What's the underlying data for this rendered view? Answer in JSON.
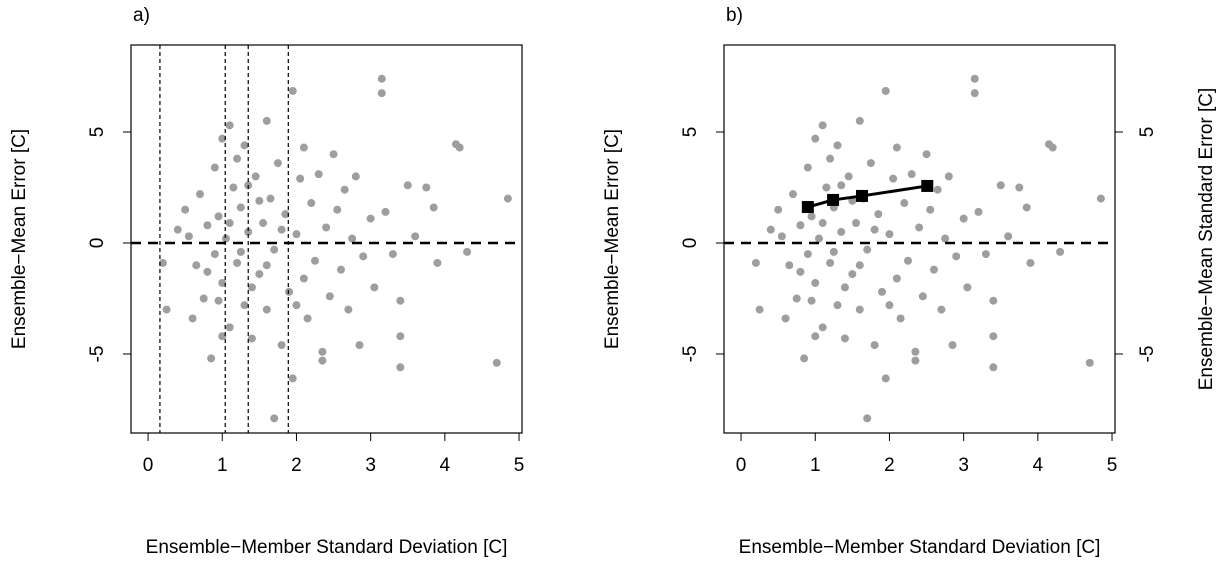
{
  "chart_data": [
    {
      "type": "scatter",
      "title": "a)",
      "x_label": "Ensemble−Member Standard Deviation [C]",
      "y_label": "Ensemble−Mean Error [C]",
      "xlim": [
        -0.23,
        5.04
      ],
      "ylim": [
        -8.56,
        8.92
      ],
      "xticks": [
        0,
        1,
        2,
        3,
        4,
        5
      ],
      "yticks": [
        -5,
        0,
        5
      ],
      "color": "#9e9e9e",
      "x": [
        0.5,
        0.6,
        0.55,
        0.65,
        0.7,
        0.75,
        0.8,
        0.85,
        0.9,
        0.9,
        0.95,
        1.0,
        1.0,
        1.05,
        1.1,
        1.1,
        1.15,
        1.2,
        1.25,
        1.3,
        1.3,
        1.35,
        1.4,
        1.45,
        1.5,
        1.55,
        1.6,
        1.6,
        1.65,
        1.7,
        1.7,
        1.75,
        1.8,
        1.85,
        1.9,
        1.95,
        1.95,
        2.0,
        2.05,
        2.1,
        2.1,
        2.15,
        2.2,
        2.25,
        2.3,
        2.35,
        2.35,
        2.4,
        2.45,
        2.5,
        2.55,
        2.6,
        2.65,
        2.7,
        2.75,
        2.8,
        2.85,
        2.9,
        3.0,
        3.05,
        3.15,
        3.15,
        3.2,
        3.3,
        3.4,
        3.4,
        3.4,
        3.5,
        3.6,
        3.75,
        3.85,
        3.9,
        4.15,
        4.2,
        4.3,
        4.7,
        4.85,
        0.2,
        0.25,
        0.4,
        1.0,
        1.2,
        1.4,
        1.5,
        0.8,
        1.1,
        1.25,
        1.6,
        1.8,
        2.0,
        1.35,
        0.95
      ],
      "values": [
        1.5,
        -3.4,
        0.3,
        -1.0,
        2.2,
        -2.5,
        0.8,
        -5.2,
        3.4,
        -0.5,
        1.2,
        4.7,
        -1.8,
        0.2,
        5.3,
        -3.8,
        2.5,
        -0.9,
        1.6,
        4.4,
        -2.8,
        0.5,
        -4.3,
        3.0,
        -1.4,
        0.9,
        5.5,
        -3.0,
        2.0,
        -7.9,
        -0.3,
        3.6,
        -4.6,
        1.3,
        -2.2,
        6.85,
        -6.1,
        0.4,
        2.9,
        4.3,
        -1.6,
        -3.4,
        1.8,
        -0.8,
        3.1,
        -5.3,
        -4.9,
        0.7,
        -2.4,
        4.0,
        1.5,
        -1.2,
        2.4,
        -3.0,
        0.2,
        3.0,
        -4.6,
        -0.6,
        1.1,
        -2.0,
        7.4,
        6.75,
        1.4,
        -0.5,
        -2.6,
        -4.2,
        -5.6,
        2.6,
        0.3,
        2.5,
        1.6,
        -0.9,
        4.45,
        4.3,
        -0.4,
        -5.4,
        2.0,
        -0.9,
        -3.0,
        0.6,
        -4.2,
        3.8,
        -2.0,
        1.9,
        -1.3,
        0.9,
        -0.4,
        -1.0,
        0.6,
        -2.8,
        2.6,
        -2.6
      ],
      "hline": 0,
      "vlines": [
        0.16,
        1.04,
        1.35,
        1.89
      ]
    },
    {
      "type": "scatter",
      "title": "b)",
      "x_label": "Ensemble−Member Standard Deviation [C]",
      "y_label": "Ensemble−Mean Error [C]",
      "y2_label": "Ensemble−Mean Standard Error [C]",
      "xlim": [
        -0.23,
        5.04
      ],
      "ylim": [
        -8.56,
        8.92
      ],
      "y2lim": [
        -8.56,
        8.92
      ],
      "xticks": [
        0,
        1,
        2,
        3,
        4,
        5
      ],
      "yticks": [
        -5,
        0,
        5
      ],
      "y2ticks": [
        -5,
        5
      ],
      "color": "#9e9e9e",
      "x": [
        0.5,
        0.6,
        0.55,
        0.65,
        0.7,
        0.75,
        0.8,
        0.85,
        0.9,
        0.9,
        0.95,
        1.0,
        1.0,
        1.05,
        1.1,
        1.1,
        1.15,
        1.2,
        1.25,
        1.3,
        1.3,
        1.35,
        1.4,
        1.45,
        1.5,
        1.55,
        1.6,
        1.6,
        1.65,
        1.7,
        1.7,
        1.75,
        1.8,
        1.85,
        1.9,
        1.95,
        1.95,
        2.0,
        2.05,
        2.1,
        2.1,
        2.15,
        2.2,
        2.25,
        2.3,
        2.35,
        2.35,
        2.4,
        2.45,
        2.5,
        2.55,
        2.6,
        2.65,
        2.7,
        2.75,
        2.8,
        2.85,
        2.9,
        3.0,
        3.05,
        3.15,
        3.15,
        3.2,
        3.3,
        3.4,
        3.4,
        3.4,
        3.5,
        3.6,
        3.75,
        3.85,
        3.9,
        4.15,
        4.2,
        4.3,
        4.7,
        4.85,
        0.2,
        0.25,
        0.4,
        1.0,
        1.2,
        1.4,
        1.5,
        0.8,
        1.1,
        1.25,
        1.6,
        1.8,
        2.0,
        1.35,
        0.95
      ],
      "values": [
        1.5,
        -3.4,
        0.3,
        -1.0,
        2.2,
        -2.5,
        0.8,
        -5.2,
        3.4,
        -0.5,
        1.2,
        4.7,
        -1.8,
        0.2,
        5.3,
        -3.8,
        2.5,
        -0.9,
        1.6,
        4.4,
        -2.8,
        0.5,
        -4.3,
        3.0,
        -1.4,
        0.9,
        5.5,
        -3.0,
        2.0,
        -7.9,
        -0.3,
        3.6,
        -4.6,
        1.3,
        -2.2,
        6.85,
        -6.1,
        0.4,
        2.9,
        4.3,
        -1.6,
        -3.4,
        1.8,
        -0.8,
        3.1,
        -5.3,
        -4.9,
        0.7,
        -2.4,
        4.0,
        1.5,
        -1.2,
        2.4,
        -3.0,
        0.2,
        3.0,
        -4.6,
        -0.6,
        1.1,
        -2.0,
        7.4,
        6.75,
        1.4,
        -0.5,
        -2.6,
        -4.2,
        -5.6,
        2.6,
        0.3,
        2.5,
        1.6,
        -0.9,
        4.45,
        4.3,
        -0.4,
        -5.4,
        2.0,
        -0.9,
        -3.0,
        0.6,
        -4.2,
        3.8,
        -2.0,
        1.9,
        -1.3,
        0.9,
        -0.4,
        -1.0,
        0.6,
        -2.8,
        2.6,
        -2.6
      ],
      "hline": 0,
      "line_series": {
        "x": [
          0.9,
          1.24,
          1.63,
          2.51
        ],
        "values": [
          1.62,
          1.94,
          2.12,
          2.57
        ],
        "color": "#000000",
        "axis": "y2"
      }
    }
  ]
}
